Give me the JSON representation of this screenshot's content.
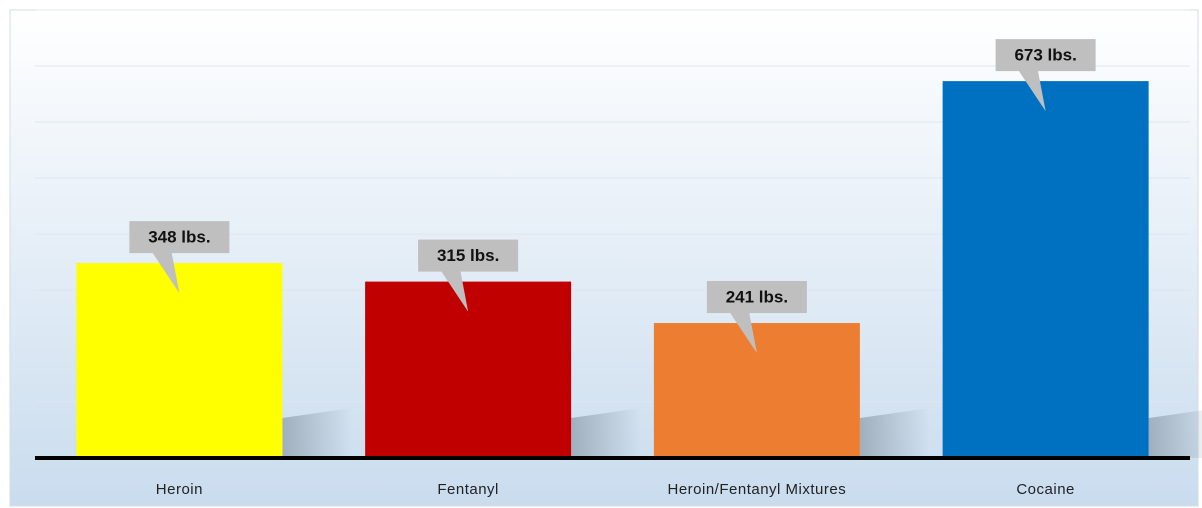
{
  "chart_data": {
    "type": "bar",
    "categories": [
      "Heroin",
      "Fentanyl",
      "Heroin/Fentanyl Mixtures",
      "Cocaine"
    ],
    "values": [
      348,
      315,
      241,
      673
    ],
    "value_labels": [
      "348 lbs.",
      "315 lbs.",
      "241 lbs.",
      "673  lbs."
    ],
    "colors": [
      "#ffff00",
      "#c00000",
      "#ed7d31",
      "#0070c0"
    ],
    "ylim": [
      0,
      800
    ],
    "yticks": [
      0,
      100,
      200,
      300,
      400,
      500,
      600,
      700,
      800
    ],
    "grid": true
  }
}
